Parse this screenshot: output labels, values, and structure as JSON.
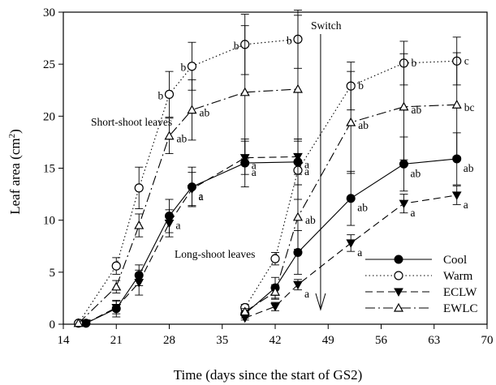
{
  "chart_data": {
    "type": "line",
    "xlabel": "Time (days since the start of GS2)",
    "ylabel_main": "Leaf area (cm",
    "ylabel_sup": "2",
    "ylabel_tail": ")",
    "xlim": [
      14,
      70
    ],
    "ylim": [
      0,
      30
    ],
    "xticks": [
      14,
      21,
      28,
      35,
      42,
      49,
      56,
      63,
      70
    ],
    "yticks": [
      0,
      5,
      10,
      15,
      20,
      25,
      30
    ],
    "legend_position": "bottom-right",
    "annotations": {
      "short_shoot": "Short-shoot leaves",
      "long_shoot": "Long-shoot leaves",
      "switch": "Switch",
      "switch_x": 48
    },
    "series": [
      {
        "name": "Cool",
        "marker": "filled-circle",
        "line": "solid",
        "groups": [
          {
            "x": [
              17,
              21,
              24,
              28,
              31,
              38,
              45
            ],
            "y": [
              0.1,
              1.5,
              4.7,
              10.4,
              13.2,
              15.5,
              15.6
            ],
            "err": [
              0.1,
              0.8,
              1.0,
              1.6,
              1.9,
              2.3,
              2.2
            ],
            "sig": [
              "",
              "",
              "",
              "a",
              "a",
              "a",
              "a"
            ]
          },
          {
            "x": [
              38,
              42,
              45,
              52,
              59,
              66
            ],
            "y": [
              1.0,
              3.5,
              6.9,
              12.1,
              15.4,
              15.9
            ],
            "err": [
              0.4,
              1.0,
              2.1,
              2.6,
              2.6,
              2.5
            ],
            "sig": [
              "",
              "",
              "",
              "ab",
              "ab",
              "ab"
            ]
          }
        ]
      },
      {
        "name": "Warm",
        "marker": "open-circle",
        "line": "dotted",
        "groups": [
          {
            "x": [
              16,
              21,
              24,
              28,
              31,
              38,
              45
            ],
            "y": [
              0.1,
              5.6,
              13.1,
              22.1,
              24.8,
              26.9,
              27.4
            ],
            "err": [
              0.1,
              0.8,
              2.0,
              2.2,
              2.3,
              2.9,
              2.8
            ],
            "sig": [
              "",
              "",
              "",
              "b",
              "b",
              "b",
              "b"
            ]
          },
          {
            "x": [
              38,
              42,
              45,
              52,
              59,
              66
            ],
            "y": [
              1.6,
              6.3,
              14.8,
              22.9,
              25.1,
              25.3
            ],
            "err": [
              0.3,
              0.6,
              2.8,
              2.3,
              2.1,
              2.3
            ],
            "sig": [
              "",
              "",
              "",
              "b",
              "b",
              "c"
            ]
          }
        ]
      },
      {
        "name": "ECLW",
        "marker": "filled-down-triangle",
        "line": "dashed",
        "groups": [
          {
            "x": [
              17,
              21,
              24,
              28,
              31,
              38,
              45
            ],
            "y": [
              0.1,
              1.6,
              4.0,
              9.7,
              13.0,
              16.0,
              16.1
            ],
            "err": [
              0.1,
              0.6,
              1.2,
              1.3,
              1.6,
              1.6,
              1.7
            ],
            "sig": [
              "",
              "",
              "",
              "",
              "a",
              "a",
              "a"
            ]
          },
          {
            "x": [
              38,
              42,
              45,
              52,
              59,
              66
            ],
            "y": [
              0.6,
              1.7,
              3.8,
              7.8,
              11.6,
              12.4
            ],
            "err": [
              0.2,
              0.4,
              0.5,
              0.8,
              0.9,
              0.9
            ],
            "sig": [
              "",
              "",
              "a",
              "a",
              "a",
              "a"
            ]
          }
        ]
      },
      {
        "name": "EWLC",
        "marker": "open-up-triangle",
        "line": "dash-dot",
        "groups": [
          {
            "x": [
              16,
              21,
              24,
              28,
              31,
              38,
              45
            ],
            "y": [
              0.1,
              3.6,
              9.5,
              18.1,
              20.6,
              22.3,
              22.6
            ],
            "err": [
              0.1,
              0.6,
              1.1,
              1.7,
              2.9,
              6.4,
              7.1
            ],
            "sig": [
              "",
              "",
              "",
              "ab",
              "ab",
              "",
              ""
            ]
          },
          {
            "x": [
              38,
              42,
              45,
              52,
              59,
              66
            ],
            "y": [
              1.2,
              3.1,
              10.3,
              19.4,
              20.9,
              21.1
            ],
            "err": [
              0.3,
              0.7,
              3.1,
              4.9,
              5.1,
              5.0
            ],
            "sig": [
              "",
              "",
              "ab",
              "ab",
              "ab",
              "bc"
            ]
          }
        ]
      }
    ]
  }
}
